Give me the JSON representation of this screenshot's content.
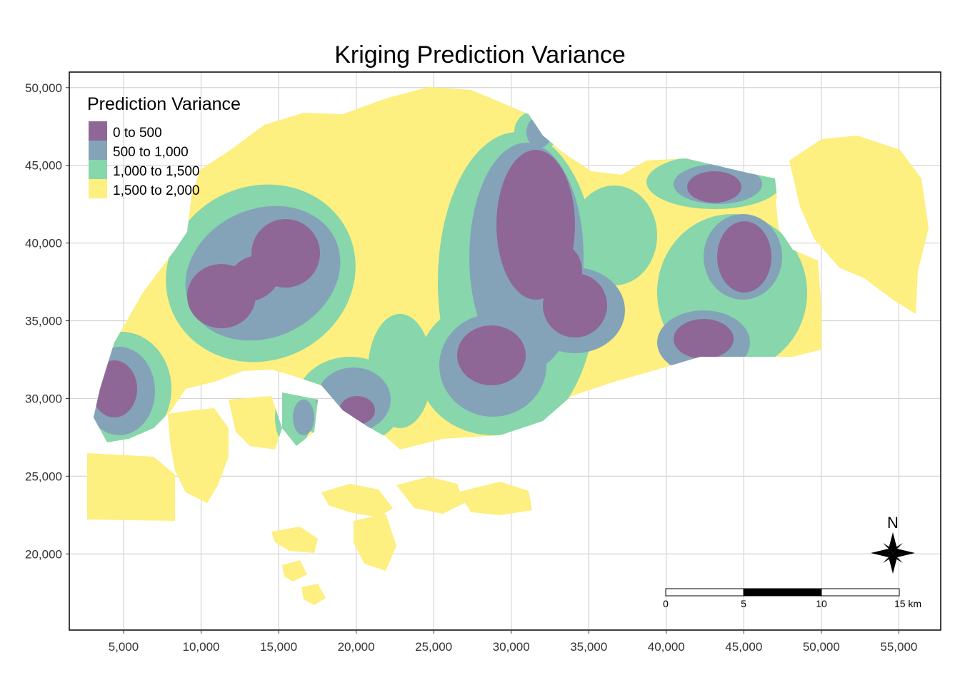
{
  "title": "Kriging Prediction Variance",
  "legend": {
    "title": "Prediction Variance",
    "items": [
      {
        "label": "0 to 500",
        "color": "#8f6797"
      },
      {
        "label": "500 to 1,000",
        "color": "#84a3b9"
      },
      {
        "label": "1,000 to 1,500",
        "color": "#87d6ac"
      },
      {
        "label": "1,500 to 2,000",
        "color": "#fdef80"
      }
    ]
  },
  "axes": {
    "x_ticks": [
      "5,000",
      "10,000",
      "15,000",
      "20,000",
      "25,000",
      "30,000",
      "35,000",
      "40,000",
      "45,000",
      "50,000",
      "55,000"
    ],
    "y_ticks": [
      "50,000",
      "45,000",
      "40,000",
      "35,000",
      "30,000",
      "25,000",
      "20,000"
    ],
    "x_range": [
      1500,
      57700
    ],
    "y_range": [
      15100,
      51000
    ]
  },
  "scale_bar": {
    "labels": [
      "0",
      "5",
      "10",
      "15 km"
    ]
  },
  "north_arrow": {
    "label": "N"
  },
  "colors": {
    "background": "#ffffff",
    "grid": "#d4d4d4"
  }
}
